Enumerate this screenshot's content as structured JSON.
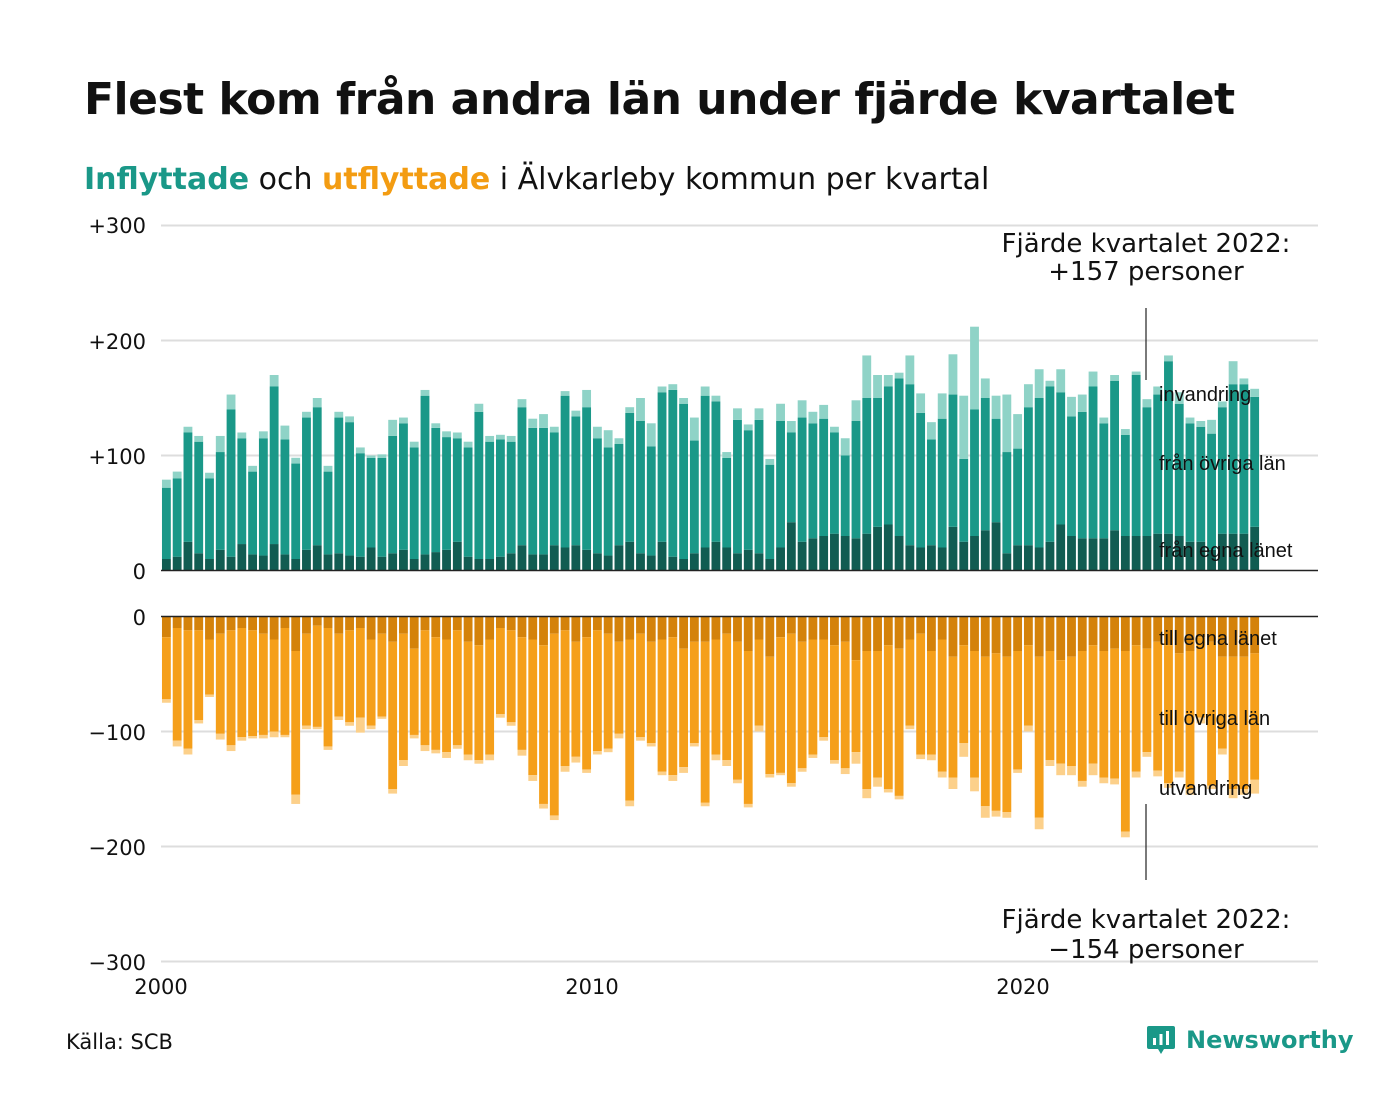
{
  "title": "Flest kom från andra län under fjärde kvartalet",
  "subtitle": {
    "inflow_word": "Inflyttade",
    "joiner": " och ",
    "outflow_word": "utflyttade",
    "rest": " i Älvkarleby kommun per kvartal"
  },
  "source": "Källa: SCB",
  "brand": "Newsworthy",
  "colors": {
    "in_own": "#115c52",
    "in_other": "#1a9888",
    "in_immig": "#8fd3c7",
    "out_own": "#d4820a",
    "out_other": "#f59f1a",
    "out_emig": "#fcd08a",
    "grid": "#dddddd",
    "brand": "#1a9888"
  },
  "chart_data": {
    "type": "bar",
    "stacked": true,
    "diverging": true,
    "x_ticks": [
      "2000",
      "2010",
      "2020"
    ],
    "y_ticks_in": [
      "+300",
      "+200",
      "+100",
      "0"
    ],
    "y_ticks_out": [
      "0",
      "−100",
      "−200",
      "−300"
    ],
    "ylim_in": [
      0,
      300
    ],
    "ylim_out": [
      -300,
      0
    ],
    "start_year": 2000,
    "segment_labels_in": [
      "invandring",
      "från övriga län",
      "från egna länet"
    ],
    "segment_labels_out": [
      "till egna länet",
      "till övriga län",
      "utvandring"
    ],
    "annotation_in": [
      "Fjärde kvartalet 2022:",
      "+157 personer"
    ],
    "annotation_out": [
      "Fjärde kvartalet 2022:",
      "−154 personer"
    ],
    "series_in": [
      {
        "name": "från egna länet",
        "values": [
          10,
          12,
          25,
          15,
          10,
          18,
          12,
          23,
          14,
          13,
          23,
          14,
          10,
          18,
          22,
          14,
          15,
          13,
          12,
          20,
          12,
          15,
          18,
          10,
          14,
          16,
          18,
          25,
          12,
          10,
          10,
          12,
          15,
          22,
          14,
          14,
          22,
          20,
          22,
          18,
          15,
          13,
          22,
          25,
          15,
          13,
          25,
          12,
          10,
          15,
          20,
          25,
          20,
          15,
          18,
          15,
          10,
          20,
          42,
          25,
          28,
          30,
          32,
          30,
          28,
          32,
          38,
          40,
          30,
          22,
          20,
          22,
          20,
          38,
          25,
          30,
          35,
          42,
          15,
          22,
          22,
          20,
          25,
          40,
          30,
          28,
          28,
          28,
          35,
          30,
          30,
          30,
          32,
          32,
          30,
          25,
          25,
          18,
          32,
          32,
          32,
          38
        ]
      },
      {
        "name": "från övriga län",
        "values": [
          62,
          68,
          95,
          97,
          70,
          85,
          128,
          92,
          72,
          102,
          137,
          100,
          83,
          115,
          120,
          72,
          118,
          116,
          90,
          78,
          86,
          102,
          110,
          97,
          138,
          108,
          98,
          90,
          95,
          128,
          102,
          102,
          97,
          120,
          110,
          110,
          98,
          132,
          112,
          124,
          100,
          94,
          88,
          112,
          115,
          95,
          130,
          145,
          135,
          98,
          132,
          122,
          78,
          116,
          104,
          116,
          82,
          110,
          78,
          108,
          100,
          102,
          88,
          70,
          102,
          118,
          112,
          120,
          137,
          140,
          117,
          92,
          112,
          115,
          72,
          110,
          115,
          90,
          88,
          84,
          120,
          130,
          135,
          115,
          104,
          110,
          132,
          100,
          130,
          88,
          140,
          112,
          121,
          150,
          115,
          103,
          100,
          101,
          110,
          130,
          130,
          113
        ]
      },
      {
        "name": "invandring",
        "values": [
          7,
          6,
          5,
          5,
          5,
          14,
          13,
          5,
          5,
          6,
          10,
          12,
          5,
          5,
          8,
          5,
          5,
          5,
          5,
          2,
          3,
          14,
          5,
          5,
          5,
          4,
          5,
          5,
          5,
          7,
          5,
          4,
          5,
          7,
          8,
          12,
          5,
          4,
          5,
          15,
          10,
          15,
          5,
          5,
          20,
          20,
          5,
          5,
          5,
          20,
          8,
          5,
          5,
          10,
          5,
          10,
          5,
          15,
          10,
          15,
          10,
          12,
          5,
          15,
          18,
          37,
          20,
          10,
          5,
          25,
          17,
          15,
          22,
          35,
          55,
          72,
          17,
          20,
          50,
          30,
          20,
          25,
          5,
          20,
          17,
          15,
          13,
          5,
          5,
          5,
          3,
          7,
          7,
          5,
          10,
          5,
          5,
          12,
          5,
          20,
          5,
          7
        ]
      }
    ],
    "series_out": [
      {
        "name": "till egna länet",
        "values": [
          -18,
          -10,
          -12,
          -12,
          -20,
          -15,
          -12,
          -10,
          -12,
          -15,
          -20,
          -10,
          -30,
          -15,
          -8,
          -10,
          -15,
          -12,
          -10,
          -20,
          -15,
          -22,
          -15,
          -28,
          -12,
          -18,
          -20,
          -12,
          -22,
          -25,
          -20,
          -10,
          -12,
          -18,
          -20,
          -25,
          -15,
          -12,
          -22,
          -18,
          -12,
          -15,
          -22,
          -20,
          -15,
          -22,
          -20,
          -18,
          -28,
          -22,
          -22,
          -20,
          -15,
          -22,
          -30,
          -20,
          -35,
          -18,
          -15,
          -22,
          -20,
          -20,
          -25,
          -22,
          -38,
          -30,
          -30,
          -25,
          -28,
          -20,
          -15,
          -30,
          -20,
          -35,
          -25,
          -30,
          -35,
          -32,
          -35,
          -30,
          -25,
          -35,
          -30,
          -38,
          -35,
          -30,
          -25,
          -30,
          -28,
          -30,
          -25,
          -28,
          -22,
          -25,
          -32,
          -30,
          -18,
          -22,
          -35,
          -35,
          -35,
          -32
        ]
      },
      {
        "name": "till övriga län",
        "values": [
          -54,
          -98,
          -103,
          -78,
          -48,
          -87,
          -100,
          -95,
          -92,
          -88,
          -80,
          -93,
          -125,
          -80,
          -88,
          -103,
          -72,
          -80,
          -78,
          -75,
          -72,
          -128,
          -110,
          -75,
          -100,
          -98,
          -98,
          -100,
          -98,
          -100,
          -100,
          -75,
          -80,
          -98,
          -118,
          -138,
          -158,
          -118,
          -100,
          -115,
          -105,
          -100,
          -80,
          -140,
          -90,
          -88,
          -115,
          -120,
          -103,
          -88,
          -140,
          -100,
          -110,
          -120,
          -133,
          -75,
          -102,
          -118,
          -130,
          -110,
          -100,
          -85,
          -100,
          -110,
          -80,
          -120,
          -110,
          -125,
          -128,
          -75,
          -105,
          -90,
          -115,
          -105,
          -85,
          -110,
          -130,
          -137,
          -135,
          -103,
          -70,
          -140,
          -95,
          -90,
          -95,
          -113,
          -103,
          -110,
          -113,
          -157,
          -110,
          -90,
          -112,
          -120,
          -103,
          -120,
          -70,
          -125,
          -80,
          -115,
          -115,
          -110
        ]
      },
      {
        "name": "utvandring",
        "values": [
          -3,
          -5,
          -5,
          -3,
          -2,
          -5,
          -5,
          -3,
          -2,
          -3,
          -5,
          -2,
          -8,
          -3,
          -2,
          -3,
          -3,
          -3,
          -13,
          -3,
          -2,
          -4,
          -5,
          -3,
          -5,
          -3,
          -5,
          -3,
          -5,
          -3,
          -5,
          -3,
          -3,
          -5,
          -5,
          -4,
          -4,
          -5,
          -5,
          -3,
          -3,
          -3,
          -4,
          -5,
          -3,
          -3,
          -3,
          -5,
          -5,
          -3,
          -3,
          -5,
          -5,
          -3,
          -3,
          -5,
          -3,
          -2,
          -3,
          -3,
          -3,
          -3,
          -3,
          -5,
          -10,
          -8,
          -8,
          -3,
          -3,
          -3,
          -4,
          -5,
          -5,
          -10,
          -12,
          -12,
          -10,
          -5,
          -5,
          -3,
          -5,
          -10,
          -5,
          -10,
          -8,
          -5,
          -10,
          -5,
          -5,
          -5,
          -5,
          -4,
          -5,
          -4,
          -5,
          -5,
          -5,
          -3,
          -5,
          -8,
          -5,
          -12
        ]
      }
    ]
  }
}
